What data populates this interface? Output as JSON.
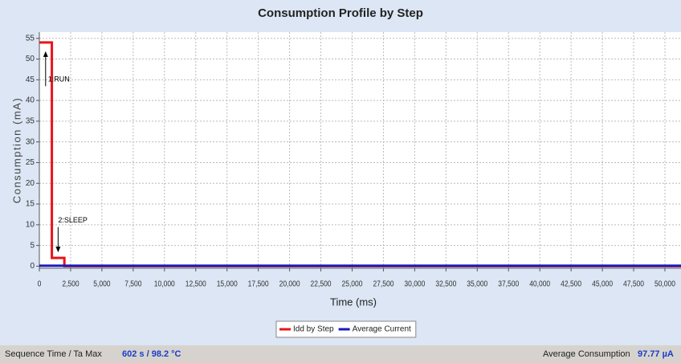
{
  "chart_data": {
    "type": "line",
    "title": "Consumption Profile by Step",
    "xlabel": "Time (ms)",
    "ylabel": "Consumption (mA)",
    "series": [
      {
        "name": "Idd by Step",
        "color": "#e8141b",
        "x": [
          0,
          1000,
          1000,
          2000,
          2000,
          51285
        ],
        "values": [
          54,
          54,
          2,
          2,
          0,
          0
        ]
      },
      {
        "name": "Average Current",
        "color": "#1a1ab8",
        "x": [
          0,
          51285
        ],
        "values": [
          0.1,
          0.1
        ]
      }
    ],
    "annotations": [
      {
        "text": "1:RUN",
        "x": 500,
        "y": 45,
        "direction": "up"
      },
      {
        "text": "2:SLEEP",
        "x": 1500,
        "y": 11,
        "direction": "down"
      }
    ],
    "xlim": [
      0,
      51285
    ],
    "ylim": [
      -0.5,
      56.5
    ],
    "xticks": [
      0,
      {
        "value": 2500,
        "label": "2,500"
      },
      {
        "value": 5000,
        "label": "5,000"
      },
      {
        "value": 7500,
        "label": "7,500"
      },
      {
        "value": 10000,
        "label": "10,000"
      },
      {
        "value": 12500,
        "label": "12,500"
      },
      {
        "value": 15000,
        "label": "15,000"
      },
      {
        "value": 17500,
        "label": "17,500"
      },
      {
        "value": 20000,
        "label": "20,000"
      },
      {
        "value": 22500,
        "label": "22,500"
      },
      {
        "value": 25000,
        "label": "25,000"
      },
      {
        "value": 27500,
        "label": "27,500"
      },
      {
        "value": 30000,
        "label": "30,000"
      },
      {
        "value": 32500,
        "label": "32,500"
      },
      {
        "value": 35000,
        "label": "35,000"
      },
      {
        "value": 37500,
        "label": "37,500"
      },
      {
        "value": 40000,
        "label": "40,000"
      },
      {
        "value": 42500,
        "label": "42,500"
      },
      {
        "value": 45000,
        "label": "45,000"
      },
      {
        "value": 47500,
        "label": "47,500"
      },
      {
        "value": 50000,
        "label": "50,000"
      }
    ],
    "yticks": [
      0,
      5,
      10,
      15,
      20,
      25,
      30,
      35,
      40,
      45,
      50,
      55
    ],
    "grid": true,
    "legend": "bottom"
  },
  "status_bar": {
    "left_label": "Sequence Time / Ta Max",
    "left_value": "602 s / 98.2 °C",
    "right_label": "Average Consumption",
    "right_value": "97.77 µA"
  }
}
